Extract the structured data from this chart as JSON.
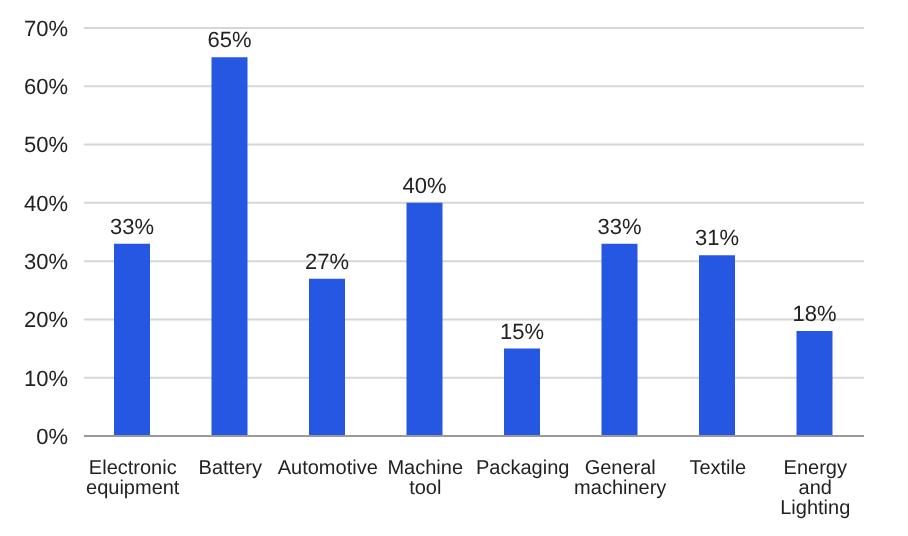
{
  "chart_data": {
    "type": "bar",
    "categories": [
      "Electronic equipment",
      "Battery",
      "Automotive",
      "Machine tool",
      "Packaging",
      "General machinery",
      "Textile",
      "Energy and Lighting"
    ],
    "values": [
      33,
      65,
      27,
      40,
      15,
      33,
      31,
      18
    ],
    "value_labels": [
      "33%",
      "65%",
      "27%",
      "40%",
      "15%",
      "33%",
      "31%",
      "18%"
    ],
    "color": "#2657e3",
    "ylim": [
      0,
      70
    ],
    "yticks": [
      {
        "value": 0,
        "label": "0%"
      },
      {
        "value": 10,
        "label": "10%"
      },
      {
        "value": 20,
        "label": "20%"
      },
      {
        "value": 30,
        "label": "30%"
      },
      {
        "value": 40,
        "label": "40%"
      },
      {
        "value": 50,
        "label": "50%"
      },
      {
        "value": 60,
        "label": "60%"
      },
      {
        "value": 70,
        "label": "70%"
      }
    ],
    "grid": "y"
  }
}
